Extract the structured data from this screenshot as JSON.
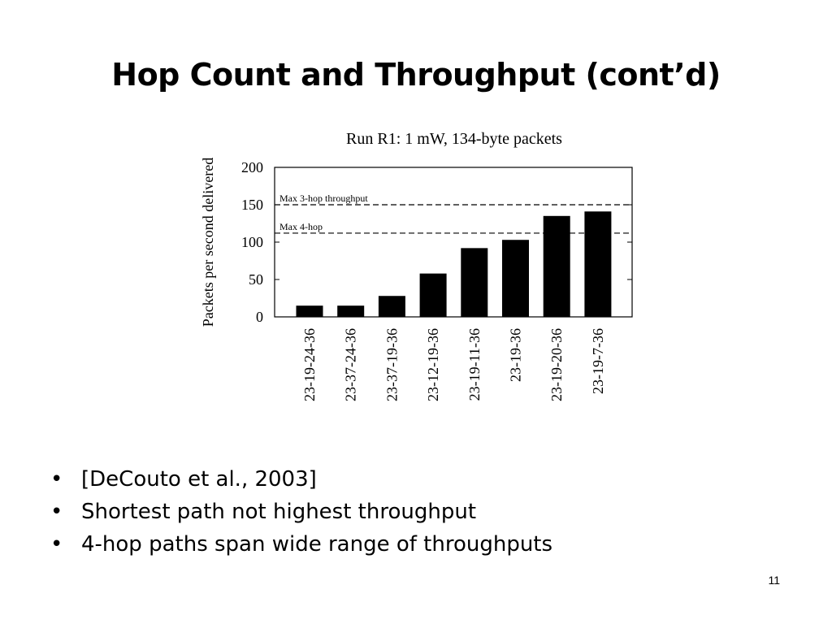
{
  "slide": {
    "title": "Hop Count and Throughput (cont’d)",
    "page_number": "11",
    "bullets": [
      "[DeCouto et al., 2003]",
      "Shortest path not highest throughput",
      "4-hop paths span wide range of throughputs"
    ],
    "bullet_glyph": "•"
  },
  "chart_data": {
    "type": "bar",
    "title": "Run R1: 1 mW, 134-byte packets",
    "xlabel": "",
    "ylabel": "Packets per second delivered",
    "categories": [
      "23-19-24-36",
      "23-37-24-36",
      "23-37-19-36",
      "23-12-19-36",
      "23-19-11-36",
      "23-19-36",
      "23-19-20-36",
      "23-19-7-36"
    ],
    "values": [
      15,
      15,
      28,
      58,
      92,
      103,
      135,
      141
    ],
    "ylim": [
      0,
      200
    ],
    "yticks": [
      0,
      50,
      100,
      150,
      200
    ],
    "grid": false,
    "bar_color": "#000000",
    "reference_lines": [
      {
        "label": "Max 3-hop throughput",
        "value": 150
      },
      {
        "label": "Max 4-hop",
        "value": 112
      }
    ]
  }
}
